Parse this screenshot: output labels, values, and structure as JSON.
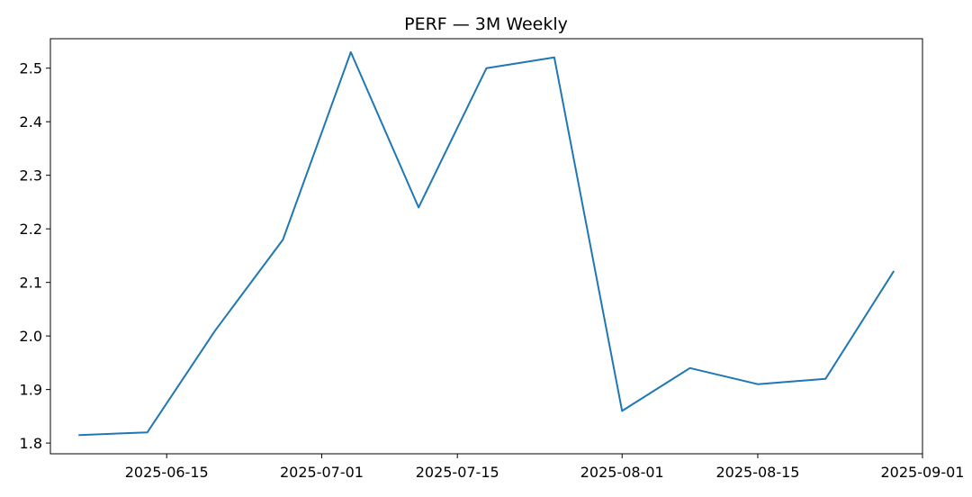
{
  "chart_data": {
    "type": "line",
    "title": "PERF — 3M Weekly",
    "xlabel": "",
    "ylabel": "",
    "x": [
      "2025-06-06",
      "2025-06-13",
      "2025-06-20",
      "2025-06-27",
      "2025-07-04",
      "2025-07-11",
      "2025-07-18",
      "2025-07-25",
      "2025-08-01",
      "2025-08-08",
      "2025-08-15",
      "2025-08-22",
      "2025-08-29"
    ],
    "series": [
      {
        "values": [
          1.815,
          1.82,
          2.01,
          2.18,
          2.53,
          2.24,
          2.5,
          2.52,
          1.86,
          1.94,
          1.91,
          1.92,
          2.12
        ],
        "color": "#1f77b4"
      }
    ],
    "ylim": [
      1.78,
      2.555
    ],
    "xlim": [
      "2025-06-03",
      "2025-09-01"
    ],
    "x_ticks": [
      {
        "date": "2025-06-15",
        "label": "2025-06-15"
      },
      {
        "date": "2025-07-01",
        "label": "2025-07-01"
      },
      {
        "date": "2025-07-15",
        "label": "2025-07-15"
      },
      {
        "date": "2025-08-01",
        "label": "2025-08-01"
      },
      {
        "date": "2025-08-15",
        "label": "2025-08-15"
      },
      {
        "date": "2025-09-01",
        "label": "2025-09-01"
      }
    ],
    "y_ticks": [
      {
        "value": 1.8,
        "label": "1.8"
      },
      {
        "value": 1.9,
        "label": "1.9"
      },
      {
        "value": 2.0,
        "label": "2.0"
      },
      {
        "value": 2.1,
        "label": "2.1"
      },
      {
        "value": 2.2,
        "label": "2.2"
      },
      {
        "value": 2.3,
        "label": "2.3"
      },
      {
        "value": 2.4,
        "label": "2.4"
      },
      {
        "value": 2.5,
        "label": "2.5"
      }
    ],
    "grid": false,
    "legend": "none"
  }
}
